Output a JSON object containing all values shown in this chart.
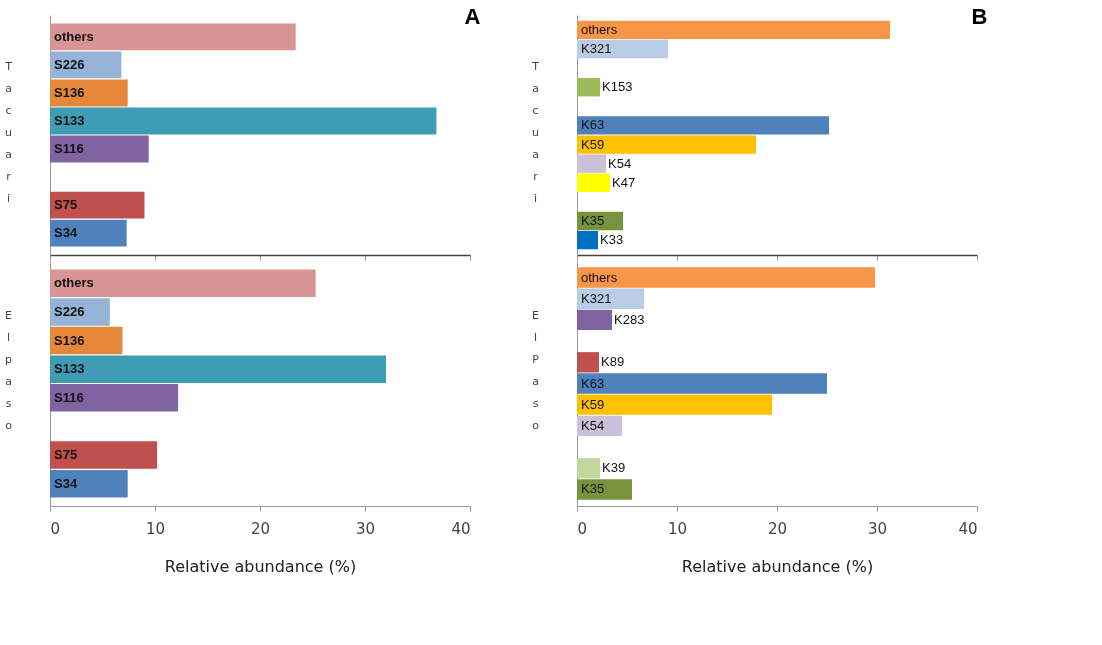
{
  "chart_data": [
    {
      "type": "bar",
      "orientation": "horizontal",
      "title": "A",
      "ylabel": "Tacuari",
      "categories": [
        "others",
        "S226",
        "S136",
        "S133",
        "S116",
        null,
        "S75",
        "S34"
      ],
      "values": [
        23.4,
        6.8,
        7.4,
        36.8,
        9.4,
        null,
        9.0,
        7.3
      ],
      "colors": [
        "#d99594",
        "#95b3d7",
        "#e6883a",
        "#3e9cb5",
        "#8064a2",
        null,
        "#c0504d",
        "#4f81bd"
      ],
      "xlim": [
        0,
        40
      ],
      "xticks": [
        0,
        10,
        20,
        30,
        40
      ],
      "tick_labels": "y"
    },
    {
      "type": "bar",
      "orientation": "horizontal",
      "ylabel": "El paso",
      "xlabel": "Relative abundance (%)",
      "categories": [
        "others",
        "S226",
        "S136",
        "S133",
        "S116",
        null,
        "S75",
        "S34"
      ],
      "values": [
        25.3,
        5.7,
        6.9,
        32.0,
        12.2,
        null,
        10.2,
        7.4
      ],
      "colors": [
        "#d99594",
        "#95b3d7",
        "#e6883a",
        "#3e9cb5",
        "#8064a2",
        null,
        "#c0504d",
        "#4f81bd"
      ],
      "xlim": [
        0,
        40
      ],
      "xticks": [
        0,
        10,
        20,
        30,
        40
      ]
    },
    {
      "type": "bar",
      "orientation": "horizontal",
      "title": "B",
      "ylabel": "Tacuari",
      "categories": [
        "others",
        "K321",
        null,
        "K153",
        null,
        "K63",
        "K59",
        "K54",
        "K47",
        null,
        "K35",
        "K33"
      ],
      "values": [
        31.3,
        9.1,
        null,
        2.3,
        null,
        25.2,
        17.9,
        2.9,
        3.3,
        null,
        4.6,
        2.1
      ],
      "colors": [
        "#f79646",
        "#b8cce4",
        null,
        "#9bbb59",
        null,
        "#4f81bd",
        "#ffc000",
        "#ccc0da",
        "#ffff00",
        null,
        "#77933c",
        "#0070c0"
      ],
      "xlim": [
        0,
        40
      ],
      "xticks": [
        0,
        10,
        20,
        30,
        40
      ],
      "tick_labels": "y"
    },
    {
      "type": "bar",
      "orientation": "horizontal",
      "ylabel": "El Paso",
      "xlabel": "Relative abundance (%)",
      "categories": [
        "others",
        "K321",
        "K283",
        null,
        "K89",
        "K63",
        "K59",
        "K54",
        null,
        "K39",
        "K35"
      ],
      "values": [
        29.8,
        6.7,
        3.5,
        null,
        2.2,
        25.0,
        19.5,
        4.5,
        null,
        2.3,
        5.5
      ],
      "colors": [
        "#f79646",
        "#b8cce4",
        "#8064a2",
        null,
        "#c0504d",
        "#4f81bd",
        "#ffc000",
        "#ccc0da",
        null,
        "#c3d69b",
        "#77933c"
      ],
      "xlim": [
        0,
        40
      ],
      "xticks": [
        0,
        10,
        20,
        30,
        40
      ]
    }
  ]
}
